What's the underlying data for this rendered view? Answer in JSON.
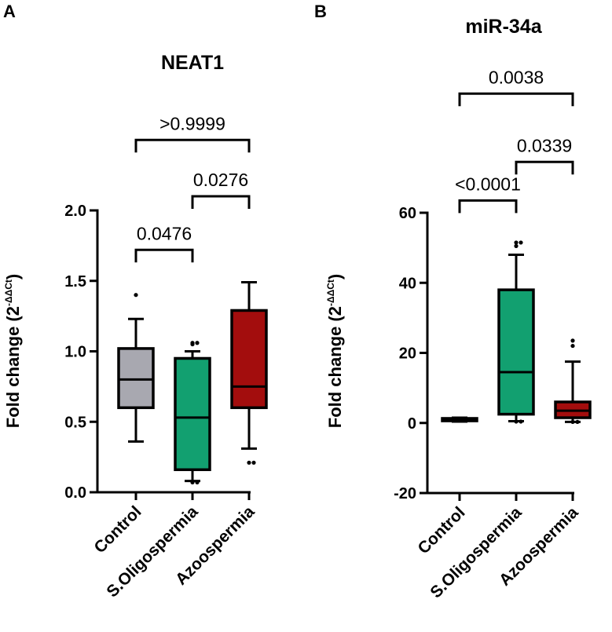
{
  "chart_data": [
    {
      "panel": "A",
      "type": "box",
      "title": "NEAT1",
      "ylabel_main": "Fold change (2",
      "ylabel_sup": "-ΔΔCt",
      "ylabel_close": ")",
      "ylim": [
        0,
        2.0
      ],
      "yticks": [
        0,
        0.5,
        1.0,
        1.5,
        2.0
      ],
      "ytick_labels": [
        "0.0",
        "0.5",
        "1.0",
        "1.5",
        "2.0"
      ],
      "categories": [
        "Control",
        "S.Oligospermia",
        "Azoospermia"
      ],
      "colors": [
        "#a8a8b0",
        "#12a070",
        "#a30d0d"
      ],
      "boxes": [
        {
          "whisker_low": 0.36,
          "q1": 0.6,
          "median": 0.8,
          "q3": 1.02,
          "whisker_high": 1.23,
          "outliers": [
            1.4
          ]
        },
        {
          "whisker_low": 0.08,
          "q1": 0.16,
          "median": 0.53,
          "q3": 0.95,
          "whisker_high": 1.0,
          "outliers": [
            0.07,
            0.07,
            1.06,
            1.06,
            1.05
          ]
        },
        {
          "whisker_low": 0.31,
          "q1": 0.6,
          "median": 0.75,
          "q3": 1.29,
          "whisker_high": 1.49,
          "outliers": [
            0.21,
            0.21
          ]
        }
      ],
      "comparisons": [
        {
          "from": 0,
          "to": 1,
          "label": "0.0476",
          "y": 1.72
        },
        {
          "from": 1,
          "to": 2,
          "label": "0.0276",
          "y": 2.1
        },
        {
          "from": 0,
          "to": 2,
          "label": ">0.9999",
          "y": 2.5
        }
      ]
    },
    {
      "panel": "B",
      "type": "box",
      "title": "miR-34a",
      "ylabel_main": "Fold change (2",
      "ylabel_sup": "-ΔΔCt",
      "ylabel_close": ")",
      "ylim": [
        -20,
        60
      ],
      "yticks": [
        -20,
        0,
        20,
        40,
        60
      ],
      "ytick_labels": [
        "-20",
        "0",
        "20",
        "40",
        "60"
      ],
      "categories": [
        "Control",
        "S.Oligospermia",
        "Azoospermia"
      ],
      "colors": [
        "#a8a8b0",
        "#12a070",
        "#a30d0d"
      ],
      "boxes": [
        {
          "whisker_low": 0.4,
          "q1": 0.6,
          "median": 1.0,
          "q3": 1.3,
          "whisker_high": 1.5,
          "outliers": []
        },
        {
          "whisker_low": 0.5,
          "q1": 2.5,
          "median": 14.5,
          "q3": 38.0,
          "whisker_high": 48.0,
          "outliers": [
            0.4,
            0.4,
            51.5,
            51.5,
            50.5
          ]
        },
        {
          "whisker_low": 0.3,
          "q1": 1.5,
          "median": 3.5,
          "q3": 6.0,
          "whisker_high": 17.5,
          "outliers": [
            0.3,
            0.3,
            22.0,
            23.5
          ]
        }
      ],
      "comparisons": [
        {
          "from": 0,
          "to": 1,
          "label": "<0.0001",
          "y": 63.5
        },
        {
          "from": 1,
          "to": 2,
          "label": "0.0339",
          "y": 74.5
        },
        {
          "from": 0,
          "to": 2,
          "label": "0.0038",
          "y": 94.0
        }
      ]
    }
  ]
}
